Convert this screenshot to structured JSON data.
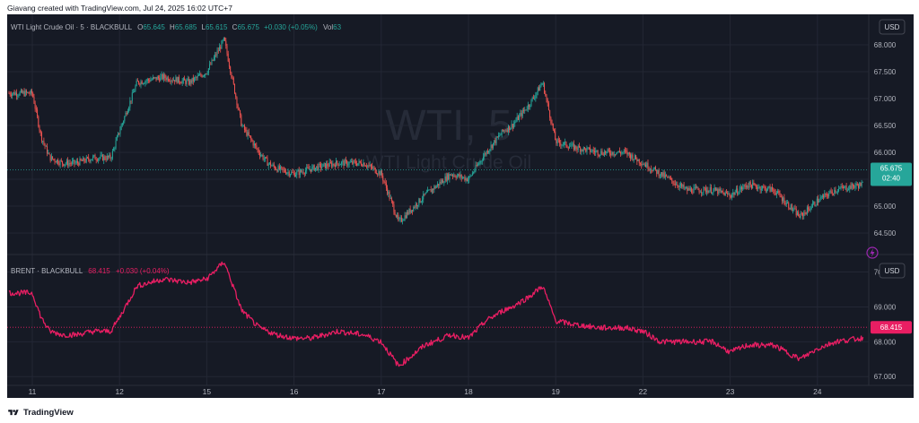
{
  "header": {
    "credit": "Giavang created with TradingView.com, Jul 24, 2025 16:02 UTC+7"
  },
  "footer": {
    "brand": "TradingView"
  },
  "colors": {
    "background": "#161a25",
    "grid": "#232734",
    "up": "#26a69a",
    "down": "#ef5350",
    "brent": "#e91e63",
    "text": "#b2b5be",
    "label_wti_bg": "#26a69a",
    "label_brent_bg": "#e91e63"
  },
  "watermark": {
    "symbol": "WTI, 5",
    "name": "WTI Light Crude Oil"
  },
  "wti_legend": {
    "title": "WTI Light Crude Oil · 5 · BLACKBULL",
    "o_label": "O",
    "o": "65.645",
    "h_label": "H",
    "h": "65.685",
    "l_label": "L",
    "l": "65.615",
    "c_label": "C",
    "c": "65.675",
    "change": "+0.030 (+0.05%)",
    "vol_label": "Vol",
    "vol": "63"
  },
  "brent_legend": {
    "title": "BRENT · BLACKBULL",
    "value": "68.415",
    "change": "+0.030 (+0.04%)"
  },
  "currency": "USD",
  "wti_last": {
    "price": "65.675",
    "countdown": "02:40"
  },
  "brent_last": {
    "price": "68.415"
  },
  "chart_data": [
    {
      "type": "candlestick",
      "title": "WTI Light Crude Oil · 5 · BLACKBULL",
      "ylim": [
        64.2,
        68.5
      ],
      "y_ticks": [
        "68.000",
        "67.500",
        "67.000",
        "66.500",
        "66.000",
        "65.500",
        "65.000",
        "64.500"
      ],
      "x_ticks": [
        "11",
        "12",
        "15",
        "16",
        "17",
        "18",
        "19",
        "22",
        "23",
        "24"
      ],
      "x": [
        0,
        0.1,
        0.2,
        0.35,
        0.5,
        0.7,
        0.9,
        1.0,
        1.2,
        1.5,
        1.8,
        2.0,
        2.2,
        2.4,
        2.6,
        2.7,
        2.8,
        3.0,
        3.2,
        3.5,
        3.8,
        4.0,
        4.2,
        4.5,
        4.8,
        5.0,
        5.2,
        5.4,
        5.5,
        5.7,
        5.85,
        6.0,
        6.2,
        6.5,
        6.8,
        7.0,
        7.2,
        7.5,
        7.8,
        8.0,
        8.2,
        8.5,
        8.8,
        9.0,
        9.2,
        9.5,
        9.7,
        9.9
      ],
      "values": [
        67.1,
        66.3,
        65.9,
        65.8,
        65.8,
        65.9,
        65.9,
        66.4,
        67.3,
        67.4,
        67.3,
        67.5,
        68.1,
        66.5,
        66.0,
        65.8,
        65.7,
        65.6,
        65.7,
        65.8,
        65.8,
        65.6,
        64.7,
        65.2,
        65.6,
        65.5,
        66.0,
        66.4,
        66.5,
        66.9,
        67.3,
        66.2,
        66.1,
        66.0,
        66.0,
        65.8,
        65.6,
        65.3,
        65.3,
        65.2,
        65.4,
        65.3,
        64.8,
        65.1,
        65.3,
        65.4,
        65.5,
        65.7
      ],
      "last": 65.675
    },
    {
      "type": "line",
      "title": "BRENT · BLACKBULL",
      "ylim": [
        66.8,
        70.4
      ],
      "y_ticks": [
        "70.000",
        "69.000",
        "68.000",
        "67.000"
      ],
      "x_ticks": [
        "11",
        "12",
        "15",
        "16",
        "17",
        "18",
        "19",
        "22",
        "23",
        "24"
      ],
      "x": [
        0,
        0.1,
        0.2,
        0.35,
        0.5,
        0.7,
        0.9,
        1.0,
        1.2,
        1.5,
        1.8,
        2.0,
        2.2,
        2.4,
        2.6,
        2.7,
        2.8,
        3.0,
        3.2,
        3.5,
        3.8,
        4.0,
        4.2,
        4.5,
        4.8,
        5.0,
        5.2,
        5.4,
        5.5,
        5.7,
        5.85,
        6.0,
        6.2,
        6.5,
        6.8,
        7.0,
        7.2,
        7.5,
        7.8,
        8.0,
        8.2,
        8.5,
        8.8,
        9.0,
        9.2,
        9.5,
        9.7,
        9.9
      ],
      "series": [
        {
          "values": [
            69.4,
            68.7,
            68.3,
            68.2,
            68.2,
            68.3,
            68.3,
            68.7,
            69.6,
            69.8,
            69.7,
            69.8,
            70.3,
            68.9,
            68.4,
            68.3,
            68.2,
            68.1,
            68.1,
            68.3,
            68.2,
            68.0,
            67.3,
            67.9,
            68.2,
            68.1,
            68.6,
            68.9,
            69.0,
            69.3,
            69.6,
            68.6,
            68.5,
            68.4,
            68.4,
            68.3,
            68.0,
            68.0,
            68.0,
            67.7,
            67.9,
            67.9,
            67.5,
            67.8,
            68.0,
            68.1,
            68.2,
            68.4
          ]
        }
      ],
      "last": 68.415
    }
  ]
}
